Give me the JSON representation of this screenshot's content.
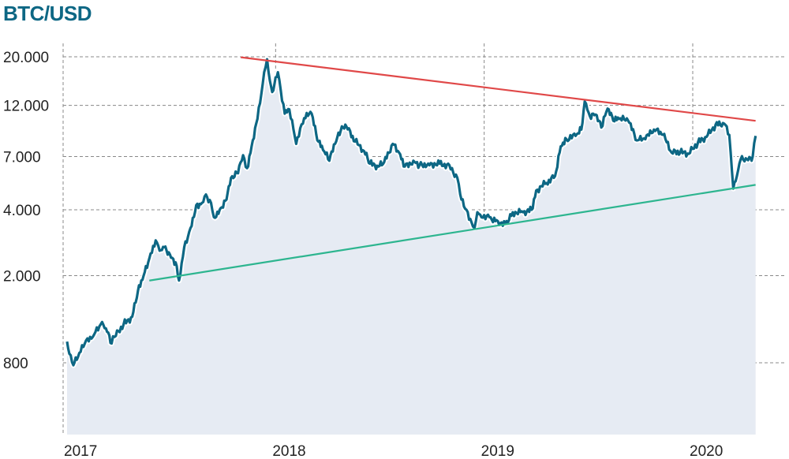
{
  "chart_data": {
    "type": "area",
    "title": "BTC/USD",
    "xlabel": "",
    "ylabel": "",
    "y_scale": "log",
    "ylim": [
      500,
      23000
    ],
    "xlim": [
      "2017-01-01",
      "2020-04-20"
    ],
    "y_ticks": [
      {
        "value": 20000,
        "label": "20.000"
      },
      {
        "value": 12000,
        "label": "12.000"
      },
      {
        "value": 7000,
        "label": "7.000"
      },
      {
        "value": 4000,
        "label": "4.000"
      },
      {
        "value": 2000,
        "label": "2.000"
      },
      {
        "value": 800,
        "label": "800"
      }
    ],
    "x_ticks": [
      {
        "value": "2017-01-01",
        "label": "2017"
      },
      {
        "value": "2018-01-01",
        "label": "2018"
      },
      {
        "value": "2019-01-01",
        "label": "2019"
      },
      {
        "value": "2020-01-01",
        "label": "2020"
      }
    ],
    "grid": true,
    "colors": {
      "line": "#0d6784",
      "area": "#e6ebf3",
      "resistance": "#e04848",
      "support": "#2db58f",
      "grid": "#888888"
    },
    "series": [
      {
        "x": [
          "2017-01-01",
          "2017-01-05",
          "2017-01-12",
          "2017-01-20",
          "2017-02-01",
          "2017-02-15",
          "2017-03-01",
          "2017-03-10",
          "2017-03-20",
          "2017-03-25",
          "2017-04-10",
          "2017-04-25",
          "2017-05-05",
          "2017-05-15",
          "2017-05-25",
          "2017-06-05",
          "2017-06-12",
          "2017-06-20",
          "2017-06-30",
          "2017-07-10",
          "2017-07-16",
          "2017-07-25",
          "2017-08-05",
          "2017-08-15",
          "2017-08-25",
          "2017-09-01",
          "2017-09-10",
          "2017-09-15",
          "2017-09-25",
          "2017-10-05",
          "2017-10-15",
          "2017-10-25",
          "2017-11-05",
          "2017-11-12",
          "2017-11-20",
          "2017-11-28",
          "2017-12-07",
          "2017-12-12",
          "2017-12-17",
          "2017-12-22",
          "2017-12-26",
          "2018-01-05",
          "2018-01-10",
          "2018-01-17",
          "2018-01-25",
          "2018-02-06",
          "2018-02-20",
          "2018-03-05",
          "2018-03-15",
          "2018-03-25",
          "2018-04-05",
          "2018-04-15",
          "2018-04-25",
          "2018-05-05",
          "2018-05-20",
          "2018-06-05",
          "2018-06-15",
          "2018-06-30",
          "2018-07-10",
          "2018-07-25",
          "2018-08-05",
          "2018-08-15",
          "2018-08-30",
          "2018-09-10",
          "2018-09-25",
          "2018-10-15",
          "2018-11-01",
          "2018-11-15",
          "2018-11-20",
          "2018-12-01",
          "2018-12-10",
          "2018-12-15",
          "2018-12-20",
          "2018-12-25",
          "2019-01-10",
          "2019-01-25",
          "2019-02-07",
          "2019-02-20",
          "2019-03-10",
          "2019-03-25",
          "2019-04-02",
          "2019-04-20",
          "2019-05-05",
          "2019-05-15",
          "2019-05-25",
          "2019-06-10",
          "2019-06-20",
          "2019-06-26",
          "2019-07-05",
          "2019-07-15",
          "2019-07-25",
          "2019-08-05",
          "2019-08-15",
          "2019-08-25",
          "2019-09-10",
          "2019-09-25",
          "2019-10-10",
          "2019-10-25",
          "2019-11-10",
          "2019-11-25",
          "2019-12-10",
          "2019-12-25",
          "2020-01-10",
          "2020-01-25",
          "2020-02-10",
          "2020-02-25",
          "2020-03-05",
          "2020-03-12",
          "2020-03-16",
          "2020-03-25",
          "2020-04-05",
          "2020-04-15",
          "2020-04-20"
        ],
        "y": [
          1000,
          880,
          780,
          850,
          980,
          1050,
          1200,
          1150,
          980,
          1050,
          1200,
          1300,
          1700,
          2000,
          2400,
          2900,
          2600,
          2700,
          2500,
          2300,
          1900,
          2700,
          3300,
          4200,
          4300,
          4700,
          4300,
          3700,
          4000,
          4400,
          5600,
          5900,
          7100,
          6200,
          7800,
          9900,
          13500,
          17000,
          19500,
          15500,
          13800,
          17000,
          14000,
          11000,
          11500,
          8000,
          10500,
          11000,
          8300,
          7500,
          6700,
          8000,
          9200,
          9600,
          8200,
          7400,
          6500,
          6300,
          6600,
          8000,
          7300,
          6300,
          6700,
          6400,
          6500,
          6500,
          6400,
          5600,
          4700,
          4000,
          3500,
          3300,
          3900,
          3800,
          3700,
          3550,
          3450,
          3900,
          3900,
          4000,
          4900,
          5300,
          5700,
          7800,
          8400,
          8700,
          9300,
          12500,
          10700,
          10900,
          9500,
          11600,
          10200,
          10400,
          10200,
          8300,
          8400,
          9300,
          8800,
          7300,
          7300,
          7200,
          8100,
          8600,
          9800,
          9900,
          8800,
          5000,
          5400,
          6800,
          6800,
          7000,
          8700
        ]
      }
    ],
    "trendlines": [
      {
        "x": [
          "2017-11-01",
          "2020-04-20"
        ],
        "y": [
          19900,
          10200
        ]
      },
      {
        "x": [
          "2017-05-25",
          "2020-04-20"
        ],
        "y": [
          1900,
          5200
        ]
      }
    ]
  }
}
